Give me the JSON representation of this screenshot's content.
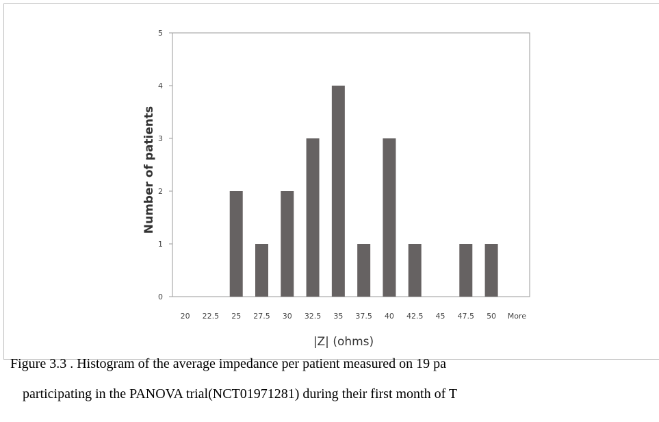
{
  "chart_data": {
    "type": "bar",
    "xlabel": "|Z| (ohms)",
    "ylabel": "Number of patients",
    "categories": [
      "20",
      "22.5",
      "25",
      "27.5",
      "30",
      "32.5",
      "35",
      "37.5",
      "40",
      "42.5",
      "45",
      "47.5",
      "50",
      "More"
    ],
    "values": [
      0,
      0,
      2,
      1,
      2,
      3,
      4,
      1,
      3,
      1,
      0,
      1,
      1,
      0
    ],
    "ylim": [
      0,
      5
    ],
    "yticks": [
      0,
      1,
      2,
      3,
      4,
      5
    ],
    "grid": false,
    "legend": "none",
    "bar_color": "#666262"
  },
  "caption": {
    "line1": "Figure 3.3 . Histogram of the average impedance per  patient measured on 19 pa",
    "line2": "participating in the PANOVA trial(NCT01971281) during their first month of T"
  }
}
